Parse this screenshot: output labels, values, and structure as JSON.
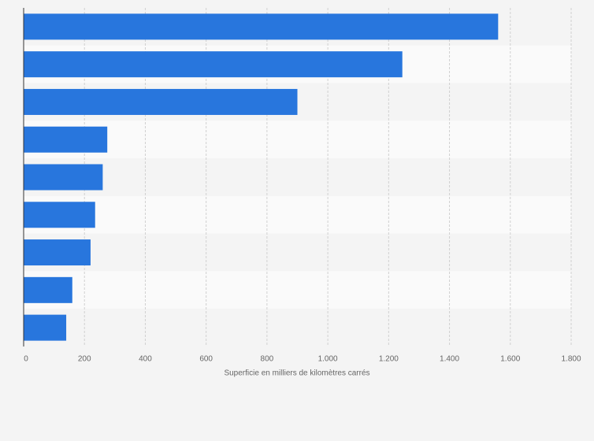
{
  "chart_data": {
    "type": "bar",
    "orientation": "horizontal",
    "x_label": "Superficie en milliers de kilomètres carrés",
    "categories": [
      null,
      null,
      null,
      null,
      null,
      null,
      null,
      null,
      null
    ],
    "values": [
      1560,
      1245,
      900,
      275,
      260,
      235,
      220,
      160,
      140
    ],
    "color": "#2876dd",
    "xlim": [
      0,
      1800
    ],
    "xticks": [
      0,
      200,
      400,
      600,
      800,
      {
        "value": 1000,
        "label": "1.000"
      },
      {
        "value": 1200,
        "label": "1.200"
      },
      {
        "value": 1400,
        "label": "1.400"
      },
      {
        "value": 1600,
        "label": "1.600"
      },
      {
        "value": 1800,
        "label": "1.800"
      }
    ],
    "grid": true
  }
}
